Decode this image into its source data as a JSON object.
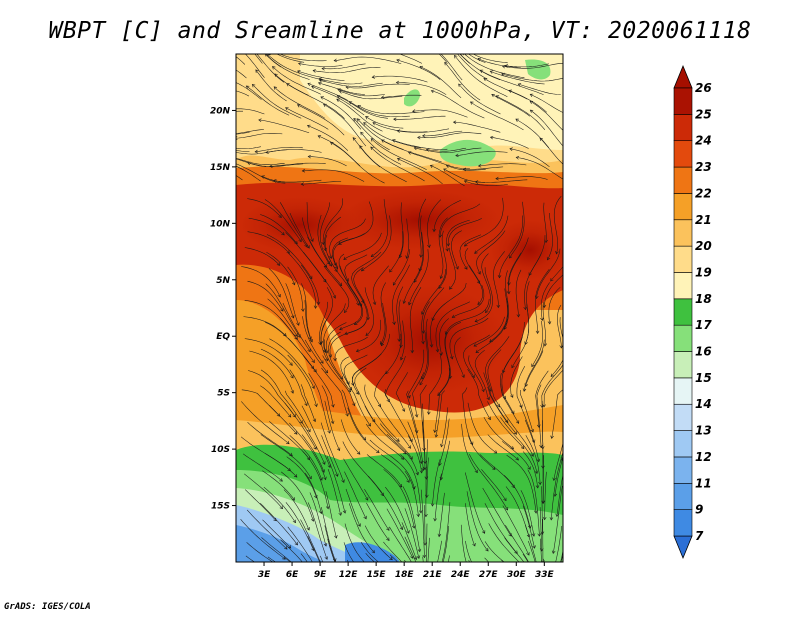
{
  "title": "WBPT [C] and Sreamline at 1000hPa, VT: 2020061118",
  "footer": "GrADS: IGES/COLA",
  "map": {
    "lon_range": [
      0,
      35
    ],
    "lat_range": [
      -20,
      25
    ],
    "lat_ticks": [
      "20N",
      "15N",
      "10N",
      "5N",
      "EQ",
      "5S",
      "10S",
      "15S"
    ],
    "lat_tick_values": [
      20,
      15,
      10,
      5,
      0,
      -5,
      -10,
      -15
    ],
    "lon_ticks": [
      "3E",
      "6E",
      "9E",
      "12E",
      "15E",
      "18E",
      "21E",
      "24E",
      "27E",
      "30E",
      "33E"
    ],
    "lon_tick_values": [
      3,
      6,
      9,
      12,
      15,
      18,
      21,
      24,
      27,
      30,
      33
    ]
  },
  "colorbar": {
    "labels": [
      "7",
      "9",
      "11",
      "12",
      "13",
      "14",
      "15",
      "16",
      "17",
      "18",
      "19",
      "20",
      "21",
      "22",
      "23",
      "24",
      "25",
      "26"
    ],
    "colors": [
      "#2b6fd6",
      "#3f8ae3",
      "#5b9fe8",
      "#7bb3ee",
      "#9fc9f3",
      "#c2dcf6",
      "#e6f5f5",
      "#c8efb8",
      "#86e07a",
      "#3fc13f",
      "#fff3b8",
      "#ffdc8a",
      "#fbc25c",
      "#f5a027",
      "#ef7514",
      "#e34a0d",
      "#cc2a07",
      "#aa1202",
      "#a50f00"
    ]
  }
}
